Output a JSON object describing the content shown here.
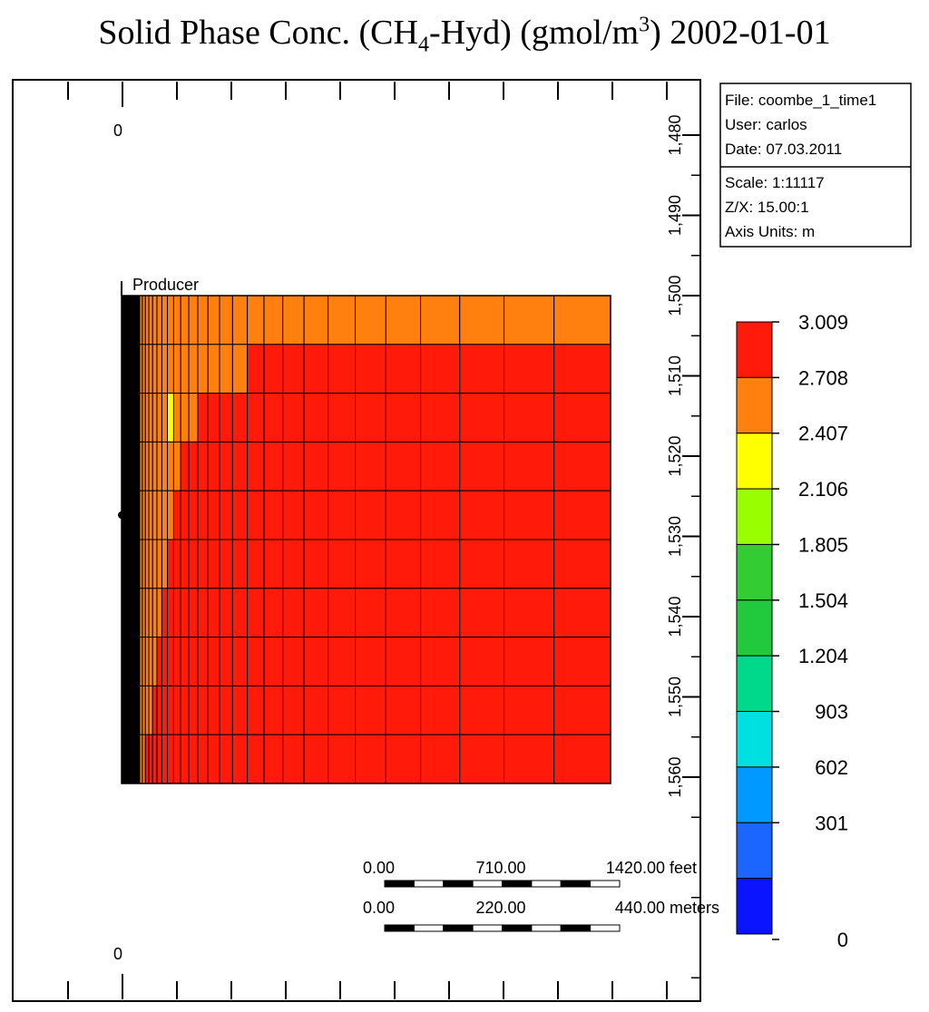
{
  "title": {
    "prefix": "Solid Phase Conc. (CH",
    "sub": "4",
    "mid": "-Hyd) (gmol/m",
    "sup": "3",
    "suffix": ") 2002-01-01"
  },
  "info_box": {
    "file": "File: coombe_1_time1",
    "user": "User:  carlos",
    "date": "Date: 07.03.2011",
    "scale": "Scale: 1:11117",
    "zx": "Z/X: 15.00:1",
    "units": "Axis Units: m"
  },
  "x_axis_labels": {
    "top": "0",
    "bottom": "0"
  },
  "well_label": "Producer",
  "scale_bars": {
    "feet": {
      "labels": [
        "0.00",
        "710.00",
        "1420.00 feet"
      ]
    },
    "meters": {
      "labels": [
        "0.00",
        "220.00",
        "440.00 meters"
      ]
    }
  },
  "colors": {
    "red": "#ff1a0a",
    "orange": "#ff7f0f",
    "yellow": "#ffff00",
    "black": "#000000"
  },
  "chart_data": {
    "type": "heatmap",
    "title": "Solid Phase Conc. (CH4-Hyd) (gmol/m3) 2002-01-01",
    "depth_axis": {
      "ticks": [
        "1,480",
        "1,490",
        "1,500",
        "1,510",
        "1,520",
        "1,530",
        "1,540",
        "1,550",
        "1,560"
      ],
      "values": [
        1480,
        1490,
        1500,
        1510,
        1520,
        1530,
        1540,
        1550,
        1560
      ],
      "range": [
        1474,
        1593
      ]
    },
    "grid": {
      "n_rows": 10,
      "n_cols": 26,
      "row_depths_m": [
        1500,
        1510,
        1520,
        1530,
        1540,
        1550,
        1560
      ],
      "yellow_band": {
        "row": 2,
        "cols": [
          7
        ]
      },
      "orange_extent_cols": [
        26,
        15,
        11,
        9,
        8,
        7,
        6,
        5,
        4,
        2
      ]
    },
    "colorbar": {
      "labels": [
        "3.009",
        "2.708",
        "2.407",
        "2.106",
        "1.805",
        "1.504",
        "1.204",
        "903",
        "602",
        "301",
        "0"
      ],
      "values": [
        3009,
        2708,
        2407,
        2106,
        1805,
        1504,
        1204,
        903,
        602,
        301,
        0
      ],
      "colors": [
        "#ff1a0a",
        "#ff7f0f",
        "#ffff00",
        "#99ff00",
        "#33cc33",
        "#22c93c",
        "#00d98c",
        "#00e0e0",
        "#0099ff",
        "#1a66ff",
        "#0a14ff"
      ]
    }
  }
}
